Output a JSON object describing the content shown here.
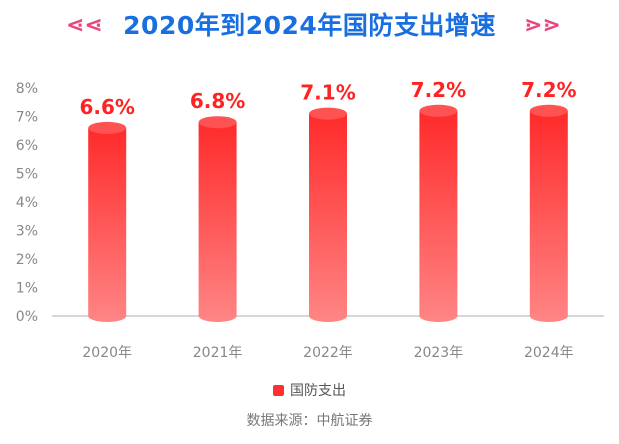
{
  "header": {
    "title": "2020年到2024年国防支出增速",
    "deco_left": "⋖⋖",
    "deco_right": "⋗⋗"
  },
  "chart_data": {
    "type": "bar",
    "title": "2020年到2024年国防支出增速",
    "categories": [
      "2020年",
      "2021年",
      "2022年",
      "2023年",
      "2024年"
    ],
    "series": [
      {
        "name": "国防支出",
        "values": [
          6.6,
          6.8,
          7.1,
          7.2,
          7.2
        ]
      }
    ],
    "data_labels": [
      "6.6%",
      "6.8%",
      "7.1%",
      "7.2%",
      "7.2%"
    ],
    "y_ticks": [
      "0%",
      "1%",
      "2%",
      "3%",
      "4%",
      "5%",
      "6%",
      "7%",
      "8%"
    ],
    "ylim": [
      0,
      8
    ],
    "grid": false,
    "legend_position": "bottom",
    "bar_style": "cylinder",
    "colors": {
      "bar_top": "#ff2a2a",
      "bar_bottom": "#ff8080",
      "cap": "#ff5252",
      "label": "#ff2222",
      "axis": "#c8c8c8",
      "tick_text": "#888888"
    }
  },
  "legend": {
    "label": "国防支出"
  },
  "source": {
    "text": "数据来源：中航证券"
  }
}
